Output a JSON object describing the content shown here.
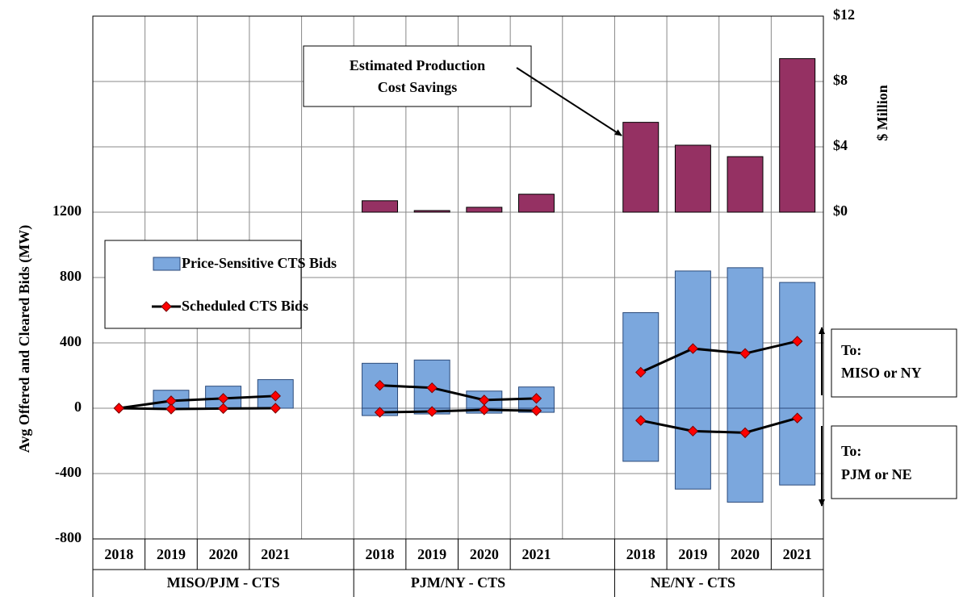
{
  "chart_data": {
    "type": "bar",
    "y_label": "Avg Offered and Cleared Bids (MW)",
    "y2_label": "$ Million",
    "categories": [
      "2018",
      "2019",
      "2020",
      "2021",
      null,
      "2018",
      "2019",
      "2020",
      "2021",
      null,
      "2018",
      "2019",
      "2020",
      "2021"
    ],
    "groups": [
      "MISO/PJM - CTS",
      "PJM/NY - CTS",
      "NE/NY - CTS"
    ],
    "ylim": [
      -800,
      2400
    ],
    "yticks": [
      -800,
      -400,
      0,
      400,
      800,
      1200
    ],
    "y2lim": [
      -20,
      12
    ],
    "y2ticks": [
      {
        "value": 0,
        "label": "$0"
      },
      {
        "value": 4,
        "label": "$4"
      },
      {
        "value": 8,
        "label": "$8"
      },
      {
        "value": 12,
        "label": "$12"
      }
    ],
    "grid": true,
    "series": [
      {
        "name": "Price-Sensitive CTS Bids",
        "type": "bar",
        "color": "#7ba7dd",
        "values": [
          0,
          110,
          135,
          175,
          null,
          275,
          295,
          105,
          130,
          null,
          585,
          840,
          860,
          770
        ]
      },
      {
        "type": "bar",
        "color": "#7ba7dd",
        "values": [
          0,
          0,
          0,
          0,
          null,
          -45,
          -35,
          -30,
          -25,
          null,
          -325,
          -495,
          -575,
          -470
        ]
      },
      {
        "name": "Scheduled CTS Bids",
        "type": "line",
        "color": "#000000",
        "marker_color": "#ff0000",
        "values": [
          0,
          45,
          60,
          75,
          null,
          140,
          125,
          50,
          60,
          null,
          220,
          365,
          335,
          410
        ]
      },
      {
        "type": "line",
        "color": "#000000",
        "marker_color": "#ff0000",
        "values": [
          0,
          -5,
          -2,
          0,
          null,
          -25,
          -20,
          -10,
          -15,
          null,
          -75,
          -140,
          -150,
          -60
        ]
      },
      {
        "type": "bar",
        "axis": "y2",
        "color": "#953163",
        "values": [
          null,
          null,
          null,
          null,
          null,
          0.7,
          0.1,
          0.3,
          1.1,
          null,
          5.5,
          4.1,
          3.4,
          9.4
        ]
      }
    ],
    "annotations": [
      {
        "text": [
          "Estimated Production",
          "Cost Savings"
        ]
      },
      {
        "text": [
          "To:",
          "MISO or NY"
        ]
      },
      {
        "text": [
          "To:",
          "PJM or NE"
        ]
      }
    ]
  }
}
